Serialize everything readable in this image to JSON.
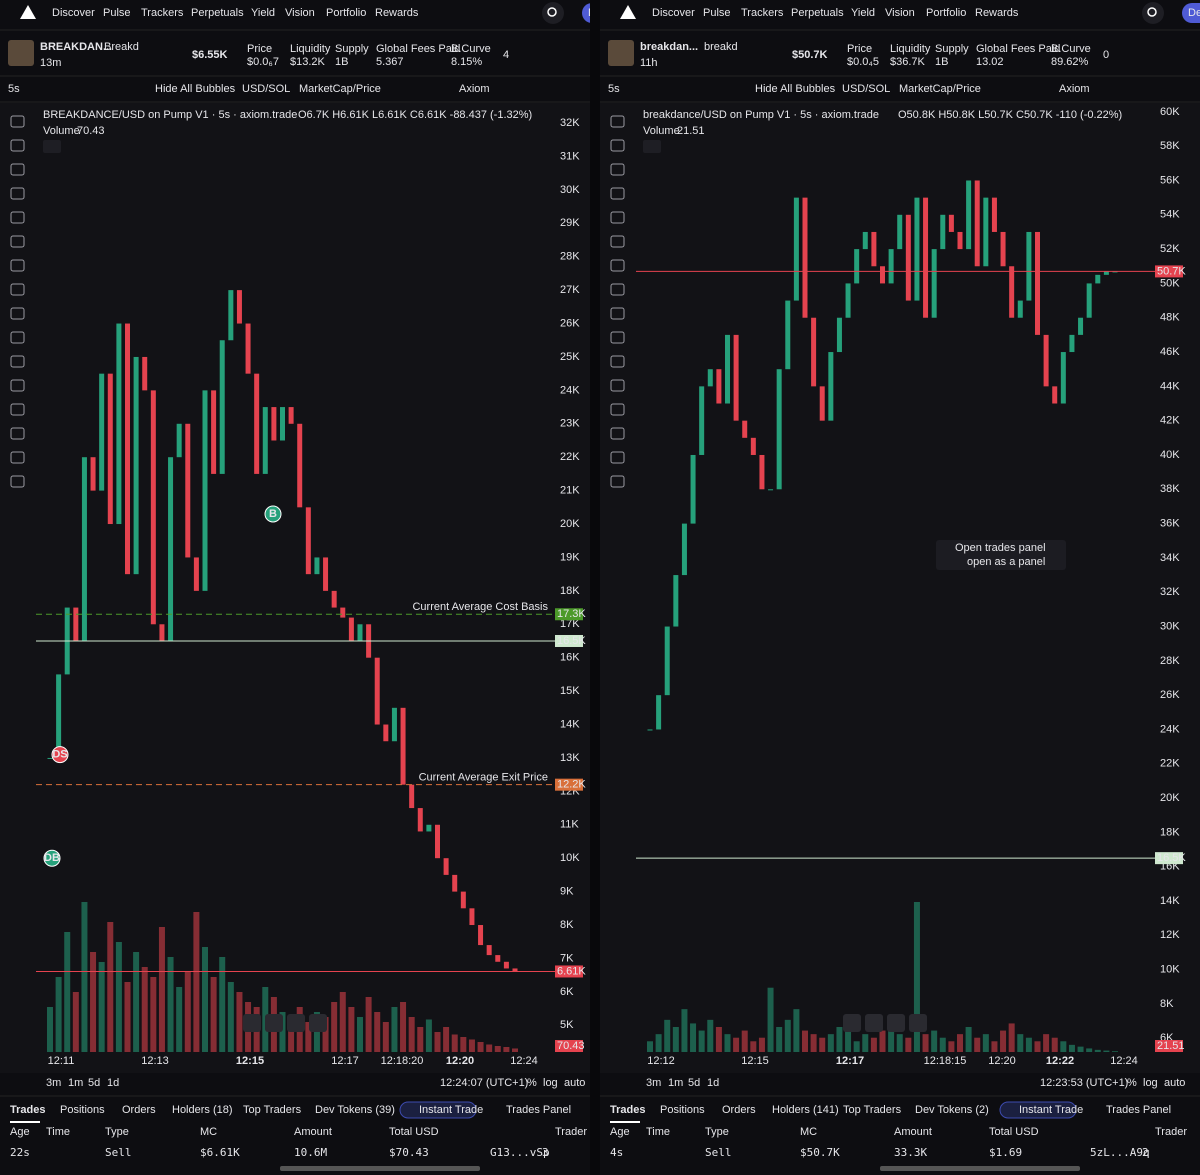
{
  "panels": [
    {
      "nav": [
        "Discover",
        "Pulse",
        "Trackers",
        "Perpetuals",
        "Yield",
        "Vision",
        "Portfolio",
        "Rewards"
      ],
      "nav_button": "De",
      "token": {
        "name": "BREAKDAN...",
        "ticker": "Breakd",
        "age": "13m",
        "mcap": "$6.55K",
        "stats": [
          {
            "label": "Price",
            "value": "$0.0₆7"
          },
          {
            "label": "Liquidity",
            "value": "$13.2K"
          },
          {
            "label": "Supply",
            "value": "1B"
          },
          {
            "label": "Global Fees Paid",
            "value": "5.367"
          },
          {
            "label": "B.Curve",
            "value": "8.15%"
          }
        ],
        "count": "4"
      },
      "toolbar": {
        "interval": "5s",
        "bubbles": "Hide All Bubbles",
        "currency": "USD/SOL",
        "mode": "MarketCap/Price",
        "source": "Axiom"
      },
      "chart": {
        "type": "candlestick",
        "title": "BREAKDANCE/USD on Pump V1 · 5s · axiom.trade",
        "ohlc": "O6.7K H6.61K L6.61K C6.61K -88.437 (-1.32%)",
        "volume_label": "Volume",
        "volume_value": "70.43",
        "ylim": [
          4200,
          32540
        ],
        "yticks": [
          {
            "value": 32000,
            "label": "32K"
          },
          {
            "value": 31000,
            "label": "31K"
          },
          {
            "value": 30000,
            "label": "30K"
          },
          {
            "value": 29000,
            "label": "29K"
          },
          {
            "value": 28000,
            "label": "28K"
          },
          {
            "value": 27000,
            "label": "27K"
          },
          {
            "value": 26000,
            "label": "26K"
          },
          {
            "value": 25000,
            "label": "25K"
          },
          {
            "value": 24000,
            "label": "24K"
          },
          {
            "value": 23000,
            "label": "23K"
          },
          {
            "value": 22000,
            "label": "22K"
          },
          {
            "value": 21000,
            "label": "21K"
          },
          {
            "value": 20000,
            "label": "20K"
          },
          {
            "value": 19000,
            "label": "19K"
          },
          {
            "value": 18000,
            "label": "18K"
          },
          {
            "value": 17000,
            "label": "17K"
          },
          {
            "value": 16000,
            "label": "16K"
          },
          {
            "value": 15000,
            "label": "15K"
          },
          {
            "value": 14000,
            "label": "14K"
          },
          {
            "value": 13000,
            "label": "13K"
          },
          {
            "value": 12000,
            "label": "12K"
          },
          {
            "value": 11000,
            "label": "11K"
          },
          {
            "value": 10000,
            "label": "10K"
          },
          {
            "value": 9000,
            "label": "9K"
          },
          {
            "value": 8000,
            "label": "8K"
          },
          {
            "value": 7000,
            "label": "7K"
          },
          {
            "value": 6000,
            "label": "6K"
          },
          {
            "value": 5000,
            "label": "5K"
          }
        ],
        "closes": [
          13000,
          15500,
          17500,
          16500,
          22000,
          21000,
          24500,
          20000,
          26000,
          18500,
          25000,
          24000,
          17000,
          16500,
          22000,
          23000,
          19000,
          18000,
          24000,
          21500,
          25500,
          27000,
          26000,
          24500,
          21500,
          23500,
          22500,
          23500,
          23000,
          20500,
          18500,
          19000,
          18000,
          17500,
          17200,
          16500,
          17000,
          16000,
          14000,
          13500,
          14500,
          12200,
          11500,
          10800,
          11000,
          10000,
          9500,
          9000,
          8500,
          8000,
          7400,
          7100,
          6900,
          6700,
          6610
        ],
        "volumes": [
          900,
          1500,
          2400,
          1200,
          3000,
          2000,
          1800,
          2600,
          2200,
          1400,
          2000,
          1700,
          1500,
          2500,
          1900,
          1300,
          1600,
          2800,
          2100,
          1500,
          1900,
          1400,
          1200,
          1000,
          900,
          1300,
          1100,
          800,
          700,
          900,
          600,
          800,
          700,
          1000,
          1200,
          900,
          700,
          1100,
          800,
          600,
          900,
          1000,
          700,
          500,
          650,
          400,
          500,
          350,
          300,
          250,
          200,
          150,
          120,
          100,
          70.43
        ],
        "levels": [
          {
            "value": 17300,
            "label": "17.3K",
            "text": "Current Average Cost Basis",
            "color": "#4c9a2a",
            "dashed": true
          },
          {
            "value": 16500,
            "label": "16.5K",
            "color": "#cfe8cf",
            "dashed": false
          },
          {
            "value": 12200,
            "label": "12.2K",
            "text": "Current Average Exit Price",
            "color": "#d9703a",
            "dashed": true
          },
          {
            "value": 6610,
            "label": "6.61K",
            "color": "#e5434f",
            "dashed": false
          }
        ],
        "markers": [
          {
            "label": "B",
            "price": 20300
          },
          {
            "label": "DS",
            "price": 13100
          },
          {
            "label": "DB",
            "price": 10000
          }
        ],
        "time_labels": [
          "12:11",
          "12:13",
          "12:15",
          "12:17",
          "12:18:20",
          "12:20",
          "12:24"
        ]
      },
      "footer": {
        "ranges": [
          "3m",
          "1m",
          "5d",
          "1d"
        ],
        "clock": "12:24:07 (UTC+1)",
        "options": [
          "%",
          "log",
          "auto"
        ]
      },
      "tabs": [
        "Trades",
        "Positions",
        "Orders",
        "Holders (18)",
        "Top Traders",
        "Dev Tokens (39)"
      ],
      "instant": "Instant Trade",
      "panel_button": "Trades Panel",
      "table": {
        "headers": [
          "Age",
          "Time",
          "Type",
          "MC",
          "Amount",
          "Total USD",
          "Trader"
        ],
        "rows": [
          [
            "22s",
            "Sell",
            "$6.61K",
            "10.6M",
            "$70.43",
            "G13...vSp",
            "3"
          ]
        ]
      }
    },
    {
      "nav": [
        "Discover",
        "Pulse",
        "Trackers",
        "Perpetuals",
        "Yield",
        "Vision",
        "Portfolio",
        "Rewards"
      ],
      "nav_button": "De",
      "token": {
        "name": "breakdan...",
        "ticker": "breakd",
        "age": "11h",
        "mcap": "$50.7K",
        "stats": [
          {
            "label": "Price",
            "value": "$0.0₄5"
          },
          {
            "label": "Liquidity",
            "value": "$36.7K"
          },
          {
            "label": "Supply",
            "value": "1B"
          },
          {
            "label": "Global Fees Paid",
            "value": "13.02"
          },
          {
            "label": "B.Curve",
            "value": "89.62%"
          }
        ],
        "count": "0"
      },
      "toolbar": {
        "interval": "5s",
        "bubbles": "Hide All Bubbles",
        "currency": "USD/SOL",
        "mode": "MarketCap/Price",
        "source": "Axiom"
      },
      "chart": {
        "type": "candlestick",
        "title": "breakdance/USD on Pump V1 · 5s · axiom.trade",
        "ohlc": "O50.8K H50.8K L50.7K C50.7K -110 (-0.22%)",
        "volume_label": "Volume",
        "volume_value": "21.51",
        "ylim": [
          5200,
          60400
        ],
        "yticks": [
          {
            "value": 60000,
            "label": "60K"
          },
          {
            "value": 58000,
            "label": "58K"
          },
          {
            "value": 56000,
            "label": "56K"
          },
          {
            "value": 54000,
            "label": "54K"
          },
          {
            "value": 52000,
            "label": "52K"
          },
          {
            "value": 50000,
            "label": "50K"
          },
          {
            "value": 48000,
            "label": "48K"
          },
          {
            "value": 46000,
            "label": "46K"
          },
          {
            "value": 44000,
            "label": "44K"
          },
          {
            "value": 42000,
            "label": "42K"
          },
          {
            "value": 40000,
            "label": "40K"
          },
          {
            "value": 38000,
            "label": "38K"
          },
          {
            "value": 36000,
            "label": "36K"
          },
          {
            "value": 34000,
            "label": "34K"
          },
          {
            "value": 32000,
            "label": "32K"
          },
          {
            "value": 30000,
            "label": "30K"
          },
          {
            "value": 28000,
            "label": "28K"
          },
          {
            "value": 26000,
            "label": "26K"
          },
          {
            "value": 24000,
            "label": "24K"
          },
          {
            "value": 22000,
            "label": "22K"
          },
          {
            "value": 20000,
            "label": "20K"
          },
          {
            "value": 18000,
            "label": "18K"
          },
          {
            "value": 16000,
            "label": "16K"
          },
          {
            "value": 14000,
            "label": "14K"
          },
          {
            "value": 12000,
            "label": "12K"
          },
          {
            "value": 10000,
            "label": "10K"
          },
          {
            "value": 8000,
            "label": "8K"
          },
          {
            "value": 6000,
            "label": "6K"
          }
        ],
        "closes": [
          24000,
          26000,
          30000,
          33000,
          36000,
          40000,
          44000,
          45000,
          43000,
          47000,
          42000,
          41000,
          40000,
          38000,
          38000,
          45000,
          49000,
          55000,
          48000,
          44000,
          42000,
          46000,
          48000,
          50000,
          52000,
          53000,
          51000,
          50000,
          52000,
          54000,
          49000,
          55000,
          48000,
          52000,
          54000,
          53000,
          52000,
          56000,
          51000,
          55000,
          53000,
          51000,
          48000,
          49000,
          53000,
          47000,
          44000,
          43000,
          46000,
          47000,
          48000,
          50000,
          50500,
          50700,
          50700
        ],
        "volumes": [
          300,
          500,
          900,
          700,
          1200,
          800,
          600,
          900,
          700,
          500,
          400,
          600,
          300,
          400,
          1800,
          700,
          900,
          1200,
          600,
          500,
          400,
          500,
          700,
          600,
          300,
          500,
          400,
          600,
          700,
          500,
          400,
          4200,
          500,
          600,
          400,
          300,
          500,
          700,
          400,
          500,
          300,
          600,
          800,
          500,
          400,
          300,
          500,
          400,
          300,
          200,
          150,
          100,
          60,
          40,
          21.51
        ],
        "levels": [
          {
            "value": 50700,
            "label": "50.7K",
            "color": "#e5434f",
            "dashed": false
          },
          {
            "value": 16500,
            "label": "16.5K",
            "color": "#cfe8cf",
            "dashed": false
          }
        ],
        "markers": [],
        "time_labels": [
          "12:12",
          "12:15",
          "12:17",
          "12:18:15",
          "12:20",
          "12:22",
          "12:24"
        ],
        "popup": {
          "title": "Open trades panel",
          "subtitle": "open as a panel"
        }
      },
      "footer": {
        "ranges": [
          "3m",
          "1m",
          "5d",
          "1d"
        ],
        "clock": "12:23:53 (UTC+1)",
        "options": [
          "%",
          "log",
          "auto"
        ]
      },
      "tabs": [
        "Trades",
        "Positions",
        "Orders",
        "Holders (141)",
        "Top Traders",
        "Dev Tokens (2)"
      ],
      "instant": "Instant Trade",
      "panel_button": "Trades Panel",
      "table": {
        "headers": [
          "Age",
          "Time",
          "Type",
          "MC",
          "Amount",
          "Total USD",
          "Trader"
        ],
        "rows": [
          [
            "4s",
            "Sell",
            "$50.7K",
            "33.3K",
            "$1.69",
            "5zL...A9q",
            "2"
          ]
        ]
      }
    }
  ]
}
